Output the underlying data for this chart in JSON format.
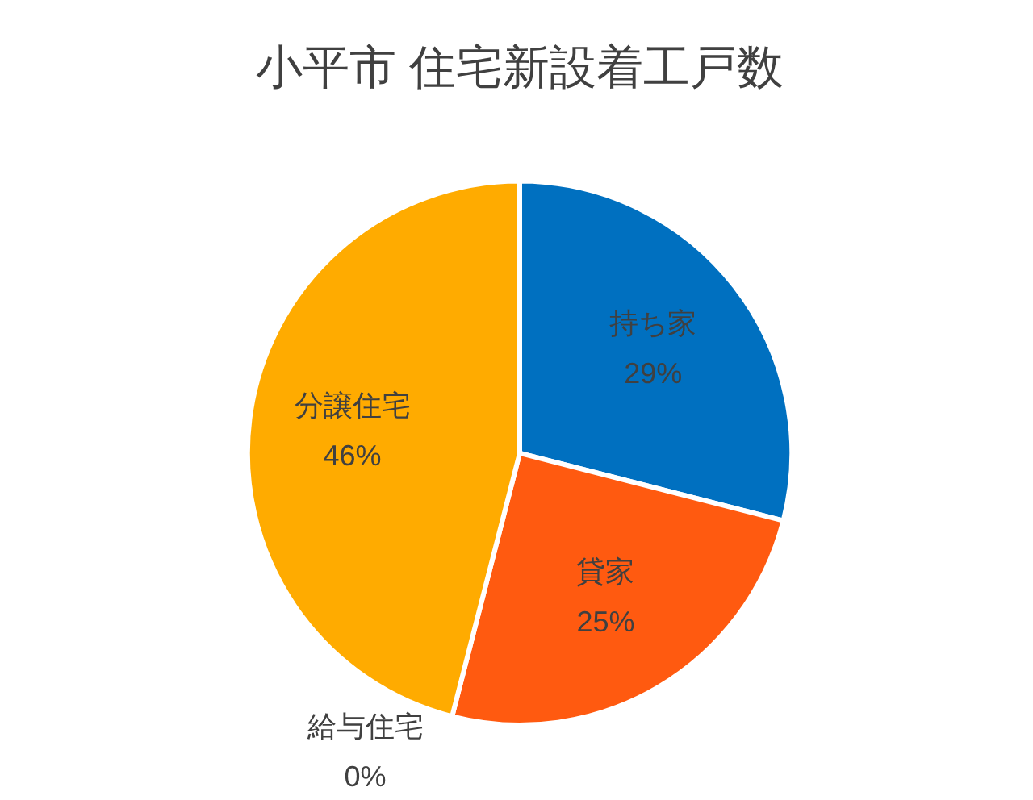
{
  "chart_data": {
    "type": "pie",
    "title": "小平市 住宅新設着工戸数",
    "categories": [
      "持ち家",
      "貸家",
      "給与住宅",
      "分譲住宅"
    ],
    "values": [
      29,
      25,
      0,
      46
    ],
    "colors": [
      "#0070c0",
      "#ff5a10",
      "#a5a5a5",
      "#ffab00"
    ],
    "value_labels": [
      "29%",
      "25%",
      "0%",
      "46%"
    ],
    "legend": false
  }
}
